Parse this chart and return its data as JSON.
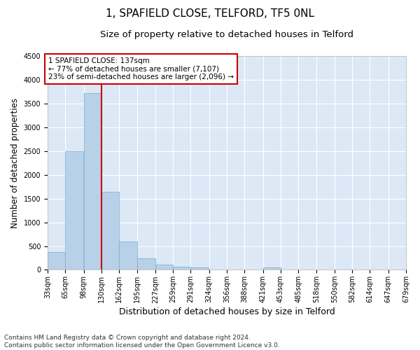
{
  "title": "1, SPAFIELD CLOSE, TELFORD, TF5 0NL",
  "subtitle": "Size of property relative to detached houses in Telford",
  "xlabel": "Distribution of detached houses by size in Telford",
  "ylabel": "Number of detached properties",
  "footer_line1": "Contains HM Land Registry data © Crown copyright and database right 2024.",
  "footer_line2": "Contains public sector information licensed under the Open Government Licence v3.0.",
  "annotation_line1": "1 SPAFIELD CLOSE: 137sqm",
  "annotation_line2": "← 77% of detached houses are smaller (7,107)",
  "annotation_line3": "23% of semi-detached houses are larger (2,096) →",
  "bin_edges": [
    33,
    65,
    98,
    130,
    162,
    195,
    227,
    259,
    291,
    324,
    356,
    388,
    421,
    453,
    485,
    518,
    550,
    582,
    614,
    647,
    679
  ],
  "bin_labels": [
    "33sqm",
    "65sqm",
    "98sqm",
    "130sqm",
    "162sqm",
    "195sqm",
    "227sqm",
    "259sqm",
    "291sqm",
    "324sqm",
    "356sqm",
    "388sqm",
    "421sqm",
    "453sqm",
    "485sqm",
    "518sqm",
    "550sqm",
    "582sqm",
    "614sqm",
    "647sqm",
    "679sqm"
  ],
  "bar_heights": [
    380,
    2500,
    3720,
    1640,
    600,
    245,
    105,
    60,
    55,
    0,
    0,
    0,
    55,
    0,
    0,
    0,
    0,
    0,
    0,
    0
  ],
  "bar_color": "#b8d0e8",
  "bar_edge_color": "#7aaecc",
  "vline_x": 130,
  "vline_color": "#cc0000",
  "ylim": [
    0,
    4500
  ],
  "yticks": [
    0,
    500,
    1000,
    1500,
    2000,
    2500,
    3000,
    3500,
    4000,
    4500
  ],
  "bg_color": "#dce8f5",
  "grid_color": "#ffffff",
  "annotation_box_facecolor": "#ffffff",
  "annotation_box_edgecolor": "#cc0000",
  "title_fontsize": 11,
  "subtitle_fontsize": 9.5,
  "xlabel_fontsize": 9,
  "ylabel_fontsize": 8.5,
  "tick_fontsize": 7,
  "annotation_fontsize": 7.5,
  "footer_fontsize": 6.5
}
